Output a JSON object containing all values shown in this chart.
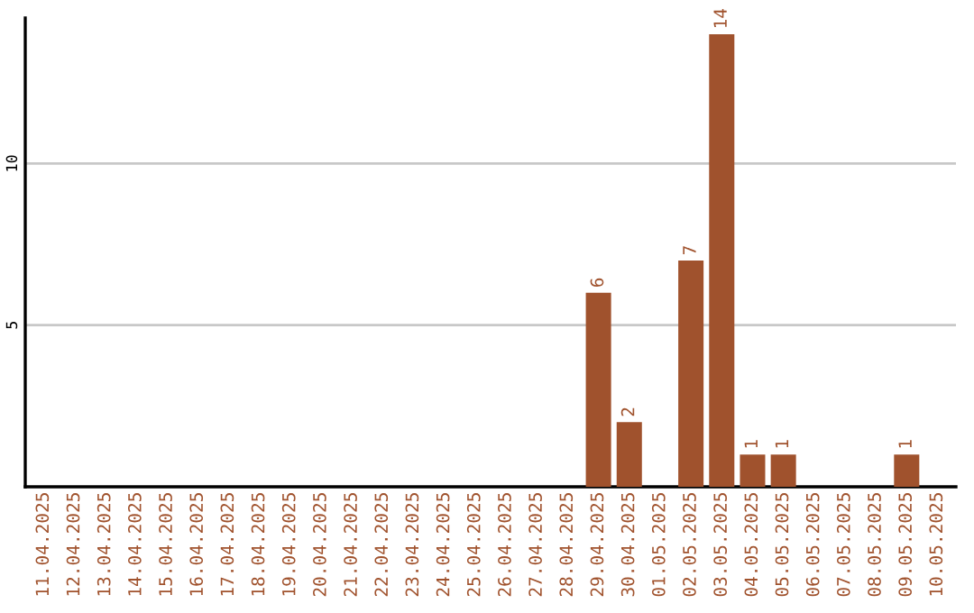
{
  "chart_data": {
    "type": "bar",
    "categories": [
      "11.04.2025",
      "12.04.2025",
      "13.04.2025",
      "14.04.2025",
      "15.04.2025",
      "16.04.2025",
      "17.04.2025",
      "18.04.2025",
      "19.04.2025",
      "20.04.2025",
      "21.04.2025",
      "22.04.2025",
      "23.04.2025",
      "24.04.2025",
      "25.04.2025",
      "26.04.2025",
      "27.04.2025",
      "28.04.2025",
      "29.04.2025",
      "30.04.2025",
      "01.05.2025",
      "02.05.2025",
      "03.05.2025",
      "04.05.2025",
      "05.05.2025",
      "06.05.2025",
      "07.05.2025",
      "08.05.2025",
      "09.05.2025",
      "10.05.2025"
    ],
    "values": [
      0,
      0,
      0,
      0,
      0,
      0,
      0,
      0,
      0,
      0,
      0,
      0,
      0,
      0,
      0,
      0,
      0,
      0,
      6,
      2,
      0,
      7,
      14,
      1,
      1,
      0,
      0,
      0,
      1,
      0
    ],
    "value_labels": [
      null,
      null,
      null,
      null,
      null,
      null,
      null,
      null,
      null,
      null,
      null,
      null,
      null,
      null,
      null,
      null,
      null,
      null,
      "6",
      "2",
      null,
      "7",
      "14",
      "1",
      "1",
      null,
      null,
      null,
      "1",
      null
    ],
    "color": "#a0522d",
    "ylim": [
      0,
      14.5
    ],
    "yticks": [
      5,
      10
    ],
    "grid": "y"
  }
}
